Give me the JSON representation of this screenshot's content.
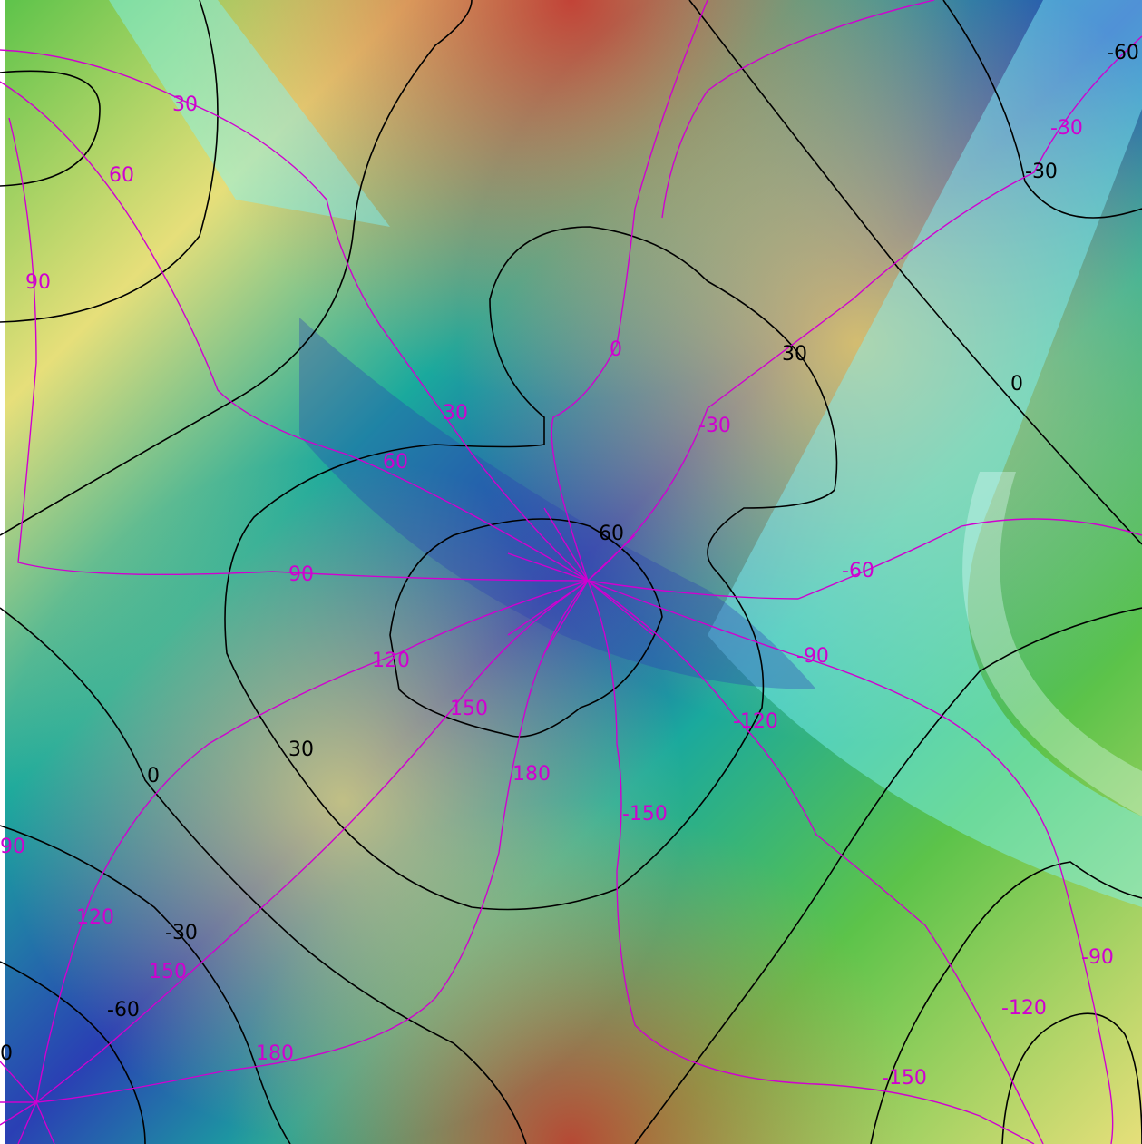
{
  "map": {
    "colors": {
      "background_red": "#c8342e",
      "background_orange": "#d9915a",
      "background_yellow": "#e6df7a",
      "background_green": "#5cc34a",
      "background_teal": "#1aa99d",
      "background_cyan": "#7ff7ff",
      "background_blue": "#2a3fb4",
      "black_contour": "#000000",
      "magenta_contour": "#d000d0"
    },
    "black_labels": {
      "l1": "-60",
      "l2": "-30",
      "l3": "30",
      "l4": "0",
      "l5": "60",
      "l6": "30",
      "l7": "0",
      "l8": "-30",
      "l9": "-60"
    },
    "magenta_labels": {
      "m1": "30",
      "m2": "60",
      "m3": "90",
      "m4": "-30",
      "m5": "0",
      "m6": "30",
      "m7": "-30",
      "m8": "60",
      "m9": "90",
      "m10": "-60",
      "m11": "-90",
      "m12": "120",
      "m13": "150",
      "m14": "-120",
      "m15": "180",
      "m16": "-150",
      "m17": "120",
      "m18": "150",
      "m19": "180",
      "m20": "-90",
      "m21": "-120",
      "m22": "-150",
      "m23": "90",
      "m24": "0"
    }
  }
}
